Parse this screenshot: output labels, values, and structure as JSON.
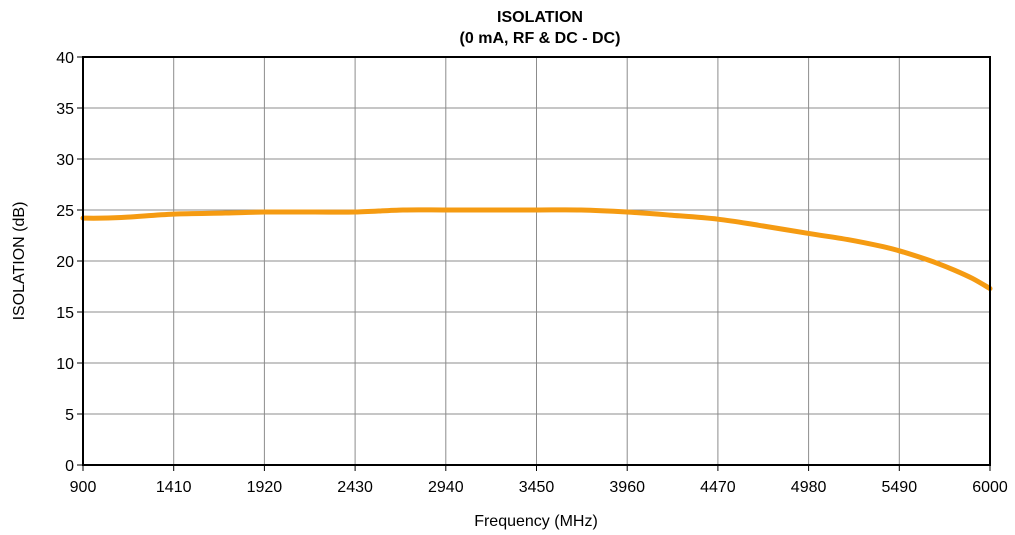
{
  "chart_data": {
    "type": "line",
    "title": "ISOLATION",
    "subtitle": "(0 mA, RF & DC - DC)",
    "xlabel": "Frequency (MHz)",
    "ylabel": "ISOLATION (dB)",
    "xlim": [
      900,
      6000
    ],
    "ylim": [
      0,
      40
    ],
    "xticks": [
      900,
      1410,
      1920,
      2430,
      2940,
      3450,
      3960,
      4470,
      4980,
      5490,
      6000
    ],
    "yticks": [
      0,
      5,
      10,
      15,
      20,
      25,
      30,
      35,
      40
    ],
    "grid": true,
    "legend": "none",
    "series": [
      {
        "color": "#f59b12",
        "x": [
          900,
          1000,
          1150,
          1410,
          1700,
          1920,
          2200,
          2430,
          2700,
          2940,
          3200,
          3450,
          3700,
          3960,
          4200,
          4470,
          4700,
          4980,
          5200,
          5400,
          5490,
          5600,
          5700,
          5800,
          5900,
          6000
        ],
        "y": [
          24.2,
          24.2,
          24.3,
          24.6,
          24.7,
          24.8,
          24.8,
          24.8,
          25.0,
          25.0,
          25.0,
          25.0,
          25.0,
          24.8,
          24.5,
          24.1,
          23.5,
          22.7,
          22.1,
          21.4,
          21.0,
          20.4,
          19.8,
          19.1,
          18.3,
          17.3
        ]
      }
    ]
  }
}
